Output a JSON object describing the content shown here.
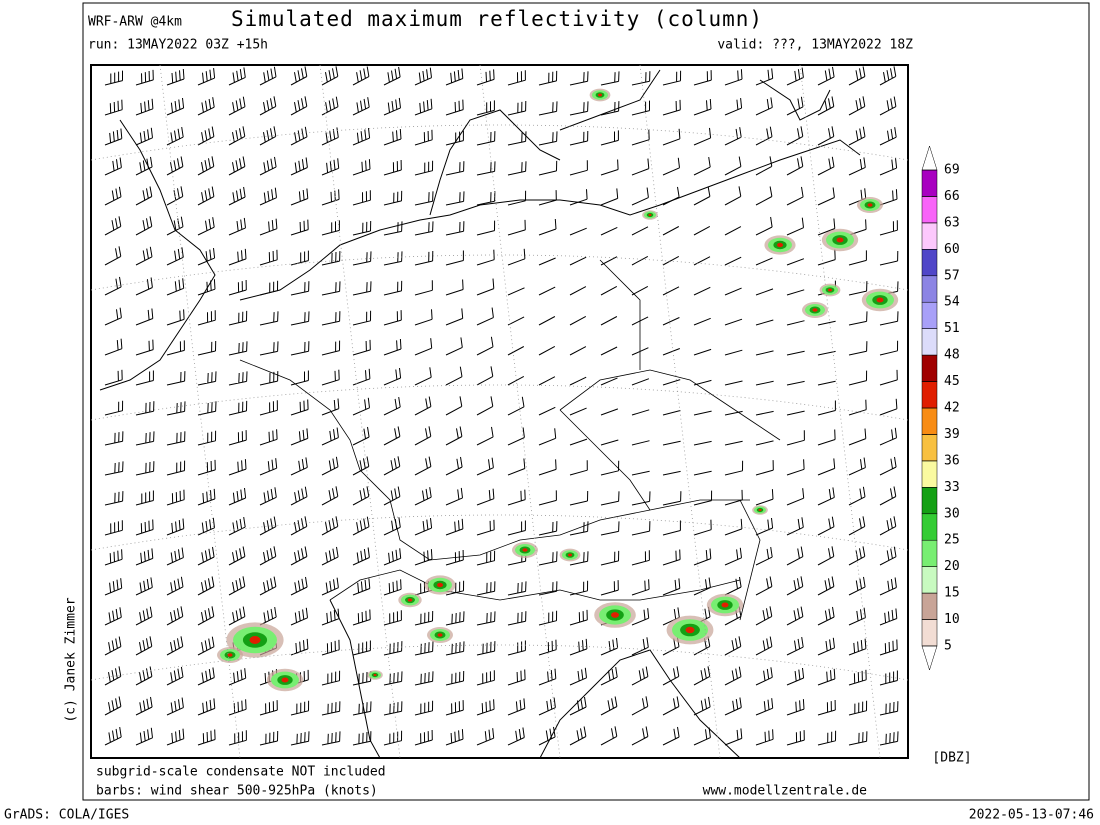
{
  "header": {
    "model": "WRF-ARW @4km",
    "title": "Simulated maximum reflectivity (column)",
    "run": "run: 13MAY2022 03Z +15h",
    "valid": "valid: ???, 13MAY2022 18Z"
  },
  "credit": "(c) Janek Zimmer",
  "footer": {
    "note1": "subgrid-scale condensate NOT included",
    "note2": "barbs: wind shear 500-925hPa (knots)",
    "site": "www.modellzentrale.de"
  },
  "colorbar": {
    "unit": "[DBZ]",
    "levels": [
      5,
      10,
      15,
      20,
      25,
      30,
      33,
      36,
      39,
      42,
      45,
      48,
      51,
      54,
      57,
      60,
      63,
      66,
      69
    ],
    "colors": [
      "#f2ddd4",
      "#c8a497",
      "#c8fac0",
      "#78ee72",
      "#34cc34",
      "#14a014",
      "#fafaa0",
      "#f8c040",
      "#f88c14",
      "#e01e00",
      "#a00000",
      "#dcdcfa",
      "#a8a0f8",
      "#8c84e4",
      "#5046c8",
      "#fcc8fc",
      "#f864f8",
      "#a800c0"
    ]
  },
  "system": {
    "left": "GrADS: COLA/IGES",
    "right": "2022-05-13-07:46"
  }
}
